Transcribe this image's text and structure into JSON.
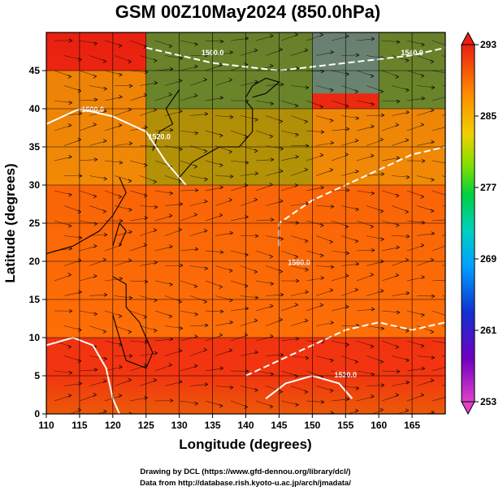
{
  "chart_data": {
    "type": "heatmap",
    "title": "GSM 00Z10May2024 (850.0hPa)",
    "xlabel": "Longitude (degrees)",
    "ylabel": "Latitude (degrees)",
    "xlim": [
      110,
      170
    ],
    "ylim": [
      0,
      50
    ],
    "xticks": [
      110,
      115,
      120,
      125,
      130,
      135,
      140,
      145,
      150,
      155,
      160,
      165
    ],
    "yticks": [
      0,
      5,
      10,
      15,
      20,
      25,
      30,
      35,
      40,
      45
    ],
    "grid": true,
    "colorbar": {
      "min": 253,
      "max": 293,
      "ticks": [
        293,
        285,
        277,
        269,
        261,
        253
      ],
      "colors": [
        "#e040c8",
        "#7000c0",
        "#1030d0",
        "#00a0ff",
        "#00d0c0",
        "#00d040",
        "#80e000",
        "#f0d000",
        "#ff8c00",
        "#e82010"
      ]
    },
    "contour_labels": [
      "1500.0",
      "1560.0",
      "1520.0",
      "1540.0",
      "1520.0",
      "1500.0"
    ],
    "regions": [
      {
        "lon": [
          110,
          170
        ],
        "lat": [
          0,
          10
        ],
        "value": 291
      },
      {
        "lon": [
          110,
          170
        ],
        "lat": [
          10,
          20
        ],
        "value": 289
      },
      {
        "lon": [
          110,
          170
        ],
        "lat": [
          20,
          30
        ],
        "value": 287
      },
      {
        "lon": [
          125,
          150
        ],
        "lat": [
          30,
          40
        ],
        "value": 280
      },
      {
        "lon": [
          150,
          170
        ],
        "lat": [
          30,
          40
        ],
        "value": 284
      },
      {
        "lon": [
          110,
          125
        ],
        "lat": [
          30,
          45
        ],
        "value": 286
      },
      {
        "lon": [
          125,
          150
        ],
        "lat": [
          40,
          50
        ],
        "value": 276
      },
      {
        "lon": [
          150,
          160
        ],
        "lat": [
          42,
          50
        ],
        "value": 272
      },
      {
        "lon": [
          160,
          170
        ],
        "lat": [
          40,
          50
        ],
        "value": 277
      }
    ]
  },
  "credits": {
    "line1": "Drawing by DCL (https://www.gfd-dennou.org/library/dcl/)",
    "line2": "Data from http://database.rish.kyoto-u.ac.jp/arch/jmadata/"
  }
}
